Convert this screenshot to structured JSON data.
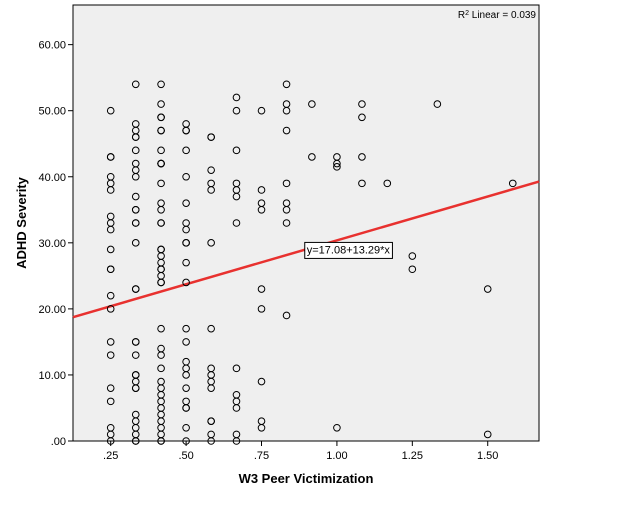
{
  "chart_data": {
    "type": "scatter",
    "xlabel": "W3 Peer Victimization",
    "ylabel": "ADHD Severity",
    "xlim": [
      0.125,
      1.67
    ],
    "ylim": [
      0,
      66
    ],
    "x_ticks": [
      0.25,
      0.5,
      0.75,
      1.0,
      1.25,
      1.5
    ],
    "x_tick_labels": [
      ".25",
      ".50",
      ".75",
      "1.00",
      "1.25",
      "1.50"
    ],
    "y_ticks": [
      0,
      10,
      20,
      30,
      40,
      50,
      60
    ],
    "y_tick_labels": [
      ".00",
      "10.00",
      "20.00",
      "30.00",
      "40.00",
      "50.00",
      "60.00"
    ],
    "grid": false,
    "r2_label": "R",
    "r2_superscript": "2",
    "r2_text": " Linear = 0.039",
    "fit_line": {
      "intercept": 17.08,
      "slope": 13.29,
      "label": "y=17.08+13.29*x",
      "label_x": 0.9,
      "label_y": 29,
      "color": "#e8312f"
    },
    "plot_background": "#efefef",
    "marker_color": "#000000",
    "points": [
      [
        0.25,
        50
      ],
      [
        0.25,
        43
      ],
      [
        0.25,
        43
      ],
      [
        0.25,
        40
      ],
      [
        0.25,
        39
      ],
      [
        0.25,
        38
      ],
      [
        0.25,
        34
      ],
      [
        0.25,
        33
      ],
      [
        0.25,
        32
      ],
      [
        0.25,
        29
      ],
      [
        0.25,
        26
      ],
      [
        0.25,
        26
      ],
      [
        0.25,
        22
      ],
      [
        0.25,
        20
      ],
      [
        0.25,
        15
      ],
      [
        0.25,
        13
      ],
      [
        0.25,
        8
      ],
      [
        0.25,
        6
      ],
      [
        0.25,
        2
      ],
      [
        0.25,
        1
      ],
      [
        0.25,
        0
      ],
      [
        0.333,
        54
      ],
      [
        0.333,
        48
      ],
      [
        0.333,
        47
      ],
      [
        0.333,
        46
      ],
      [
        0.333,
        46
      ],
      [
        0.333,
        44
      ],
      [
        0.333,
        42
      ],
      [
        0.333,
        41
      ],
      [
        0.333,
        40
      ],
      [
        0.333,
        37
      ],
      [
        0.333,
        35
      ],
      [
        0.333,
        35
      ],
      [
        0.333,
        33
      ],
      [
        0.333,
        33
      ],
      [
        0.333,
        30
      ],
      [
        0.333,
        23
      ],
      [
        0.333,
        23
      ],
      [
        0.333,
        15
      ],
      [
        0.333,
        15
      ],
      [
        0.333,
        13
      ],
      [
        0.333,
        10
      ],
      [
        0.333,
        10
      ],
      [
        0.333,
        9
      ],
      [
        0.333,
        8
      ],
      [
        0.333,
        8
      ],
      [
        0.333,
        4
      ],
      [
        0.333,
        3
      ],
      [
        0.333,
        2
      ],
      [
        0.333,
        1
      ],
      [
        0.333,
        0
      ],
      [
        0.333,
        0
      ],
      [
        0.417,
        54
      ],
      [
        0.417,
        51
      ],
      [
        0.417,
        49
      ],
      [
        0.417,
        49
      ],
      [
        0.417,
        47
      ],
      [
        0.417,
        47
      ],
      [
        0.417,
        44
      ],
      [
        0.417,
        42
      ],
      [
        0.417,
        42
      ],
      [
        0.417,
        42
      ],
      [
        0.417,
        39
      ],
      [
        0.417,
        36
      ],
      [
        0.417,
        35
      ],
      [
        0.417,
        33
      ],
      [
        0.417,
        33
      ],
      [
        0.417,
        29
      ],
      [
        0.417,
        29
      ],
      [
        0.417,
        28
      ],
      [
        0.417,
        27
      ],
      [
        0.417,
        26
      ],
      [
        0.417,
        26
      ],
      [
        0.417,
        25
      ],
      [
        0.417,
        24
      ],
      [
        0.417,
        24
      ],
      [
        0.417,
        17
      ],
      [
        0.417,
        14
      ],
      [
        0.417,
        13
      ],
      [
        0.417,
        11
      ],
      [
        0.417,
        9
      ],
      [
        0.417,
        8
      ],
      [
        0.417,
        7
      ],
      [
        0.417,
        6
      ],
      [
        0.417,
        5
      ],
      [
        0.417,
        4
      ],
      [
        0.417,
        3
      ],
      [
        0.417,
        2
      ],
      [
        0.417,
        1
      ],
      [
        0.417,
        0
      ],
      [
        0.417,
        0
      ],
      [
        0.5,
        48
      ],
      [
        0.5,
        47
      ],
      [
        0.5,
        47
      ],
      [
        0.5,
        44
      ],
      [
        0.5,
        40
      ],
      [
        0.5,
        36
      ],
      [
        0.5,
        33
      ],
      [
        0.5,
        32
      ],
      [
        0.5,
        30
      ],
      [
        0.5,
        30
      ],
      [
        0.5,
        27
      ],
      [
        0.5,
        24
      ],
      [
        0.5,
        17
      ],
      [
        0.5,
        15
      ],
      [
        0.5,
        12
      ],
      [
        0.5,
        11
      ],
      [
        0.5,
        10
      ],
      [
        0.5,
        8
      ],
      [
        0.5,
        6
      ],
      [
        0.5,
        5
      ],
      [
        0.5,
        5
      ],
      [
        0.5,
        2
      ],
      [
        0.5,
        0
      ],
      [
        0.583,
        46
      ],
      [
        0.583,
        46
      ],
      [
        0.583,
        41
      ],
      [
        0.583,
        39
      ],
      [
        0.583,
        38
      ],
      [
        0.583,
        30
      ],
      [
        0.583,
        17
      ],
      [
        0.583,
        11
      ],
      [
        0.583,
        10
      ],
      [
        0.583,
        9
      ],
      [
        0.583,
        8
      ],
      [
        0.583,
        3
      ],
      [
        0.583,
        3
      ],
      [
        0.583,
        1
      ],
      [
        0.583,
        0
      ],
      [
        0.667,
        52
      ],
      [
        0.667,
        50
      ],
      [
        0.667,
        44
      ],
      [
        0.667,
        39
      ],
      [
        0.667,
        38
      ],
      [
        0.667,
        37
      ],
      [
        0.667,
        33
      ],
      [
        0.667,
        11
      ],
      [
        0.667,
        7
      ],
      [
        0.667,
        6
      ],
      [
        0.667,
        5
      ],
      [
        0.667,
        1
      ],
      [
        0.667,
        0
      ],
      [
        0.75,
        50
      ],
      [
        0.75,
        38
      ],
      [
        0.75,
        36
      ],
      [
        0.75,
        35
      ],
      [
        0.75,
        23
      ],
      [
        0.75,
        20
      ],
      [
        0.75,
        9
      ],
      [
        0.75,
        3
      ],
      [
        0.75,
        2
      ],
      [
        0.833,
        54
      ],
      [
        0.833,
        51
      ],
      [
        0.833,
        50
      ],
      [
        0.833,
        47
      ],
      [
        0.833,
        39
      ],
      [
        0.833,
        36
      ],
      [
        0.833,
        35
      ],
      [
        0.833,
        33
      ],
      [
        0.833,
        19
      ],
      [
        0.917,
        51
      ],
      [
        0.917,
        43
      ],
      [
        1.0,
        43
      ],
      [
        1.0,
        42
      ],
      [
        1.0,
        41.5
      ],
      [
        1.0,
        2
      ],
      [
        1.083,
        51
      ],
      [
        1.083,
        49
      ],
      [
        1.083,
        43
      ],
      [
        1.083,
        39
      ],
      [
        1.167,
        39
      ],
      [
        1.25,
        28
      ],
      [
        1.25,
        26
      ],
      [
        1.333,
        51
      ],
      [
        1.5,
        23
      ],
      [
        1.5,
        1
      ],
      [
        1.583,
        39
      ]
    ]
  }
}
